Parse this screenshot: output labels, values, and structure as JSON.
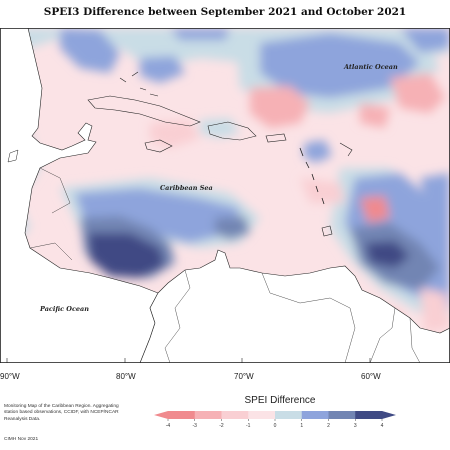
{
  "title": "SPEI3 Difference between September 2021 and October 2021",
  "longitude_labels": [
    "90°W",
    "80°W",
    "70°W",
    "60°W"
  ],
  "ocean_labels": {
    "atlantic": "Atlantic Ocean",
    "caribbean": "Caribbean Sea",
    "pacific": "Pacific Ocean"
  },
  "credits": "Monitoring Map of the Caribbean Region. Aggregating station based observations, CCIDF, with NCEP/NCAR Reanalysis Data.",
  "footer": "CIMH Nov 2021",
  "legend": {
    "title": "SPEI Difference",
    "ticks": [
      "-4",
      "-3",
      "-2",
      "-1",
      "0",
      "1",
      "2",
      "3",
      "4"
    ],
    "colors": [
      "#f08a8e",
      "#f6b1b5",
      "#f9cfd3",
      "#fbe3e6",
      "#ffffff",
      "#c9dde6",
      "#8ea4dc",
      "#7285b3",
      "#3f4a84"
    ]
  }
}
